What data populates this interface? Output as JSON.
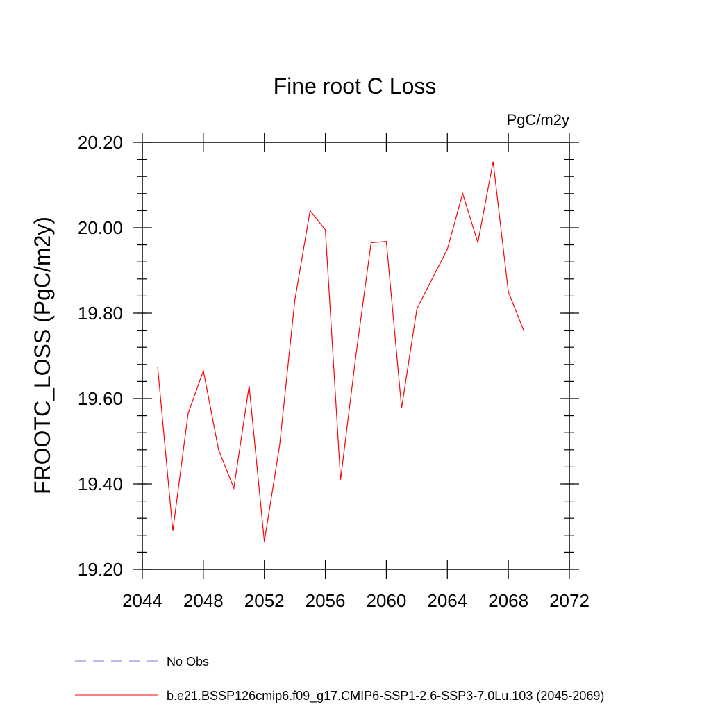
{
  "chart_data": {
    "type": "line",
    "title": "Fine root C Loss",
    "units_label": "PgC/m2y",
    "ylabel": "FROOTC_LOSS  (PgC/m2y)",
    "xlabel": "",
    "xlim": [
      2044,
      2072
    ],
    "ylim": [
      19.2,
      20.2
    ],
    "x_ticks": [
      2044,
      2048,
      2052,
      2056,
      2060,
      2064,
      2068,
      2072
    ],
    "x_tick_labels": [
      "2044",
      "2048",
      "2052",
      "2056",
      "2060",
      "2064",
      "2068",
      "2072"
    ],
    "y_ticks": [
      19.2,
      19.4,
      19.6,
      19.8,
      20.0,
      20.2
    ],
    "y_tick_labels": [
      "19.20",
      "19.40",
      "19.60",
      "19.80",
      "20.00",
      "20.20"
    ],
    "grid": false,
    "legend_position": "bottom",
    "series": [
      {
        "name": "b.e21.BSSP126cmip6.f09_g17.CMIP6-SSP1-2.6-SSP3-7.0Lu.103 (2045-2069)",
        "color": "#ff0000",
        "x": [
          2045,
          2046,
          2047,
          2048,
          2049,
          2050,
          2051,
          2052,
          2053,
          2054,
          2055,
          2056,
          2057,
          2058,
          2059,
          2060,
          2061,
          2062,
          2063,
          2064,
          2065,
          2066,
          2067,
          2068,
          2069
        ],
        "values": [
          19.675,
          19.29,
          19.565,
          19.665,
          19.48,
          19.39,
          19.63,
          19.265,
          19.49,
          19.83,
          20.04,
          19.995,
          19.41,
          19.7,
          19.965,
          19.968,
          19.578,
          19.81,
          19.88,
          19.95,
          20.08,
          19.965,
          20.155,
          19.85,
          19.76
        ]
      }
    ],
    "legend": [
      {
        "label": "No Obs",
        "color": "#7c6fd6",
        "dashed": true
      },
      {
        "label": "b.e21.BSSP126cmip6.f09_g17.CMIP6-SSP1-2.6-SSP3-7.0Lu.103 (2045-2069)",
        "color": "#ff0000",
        "dashed": false
      }
    ]
  }
}
